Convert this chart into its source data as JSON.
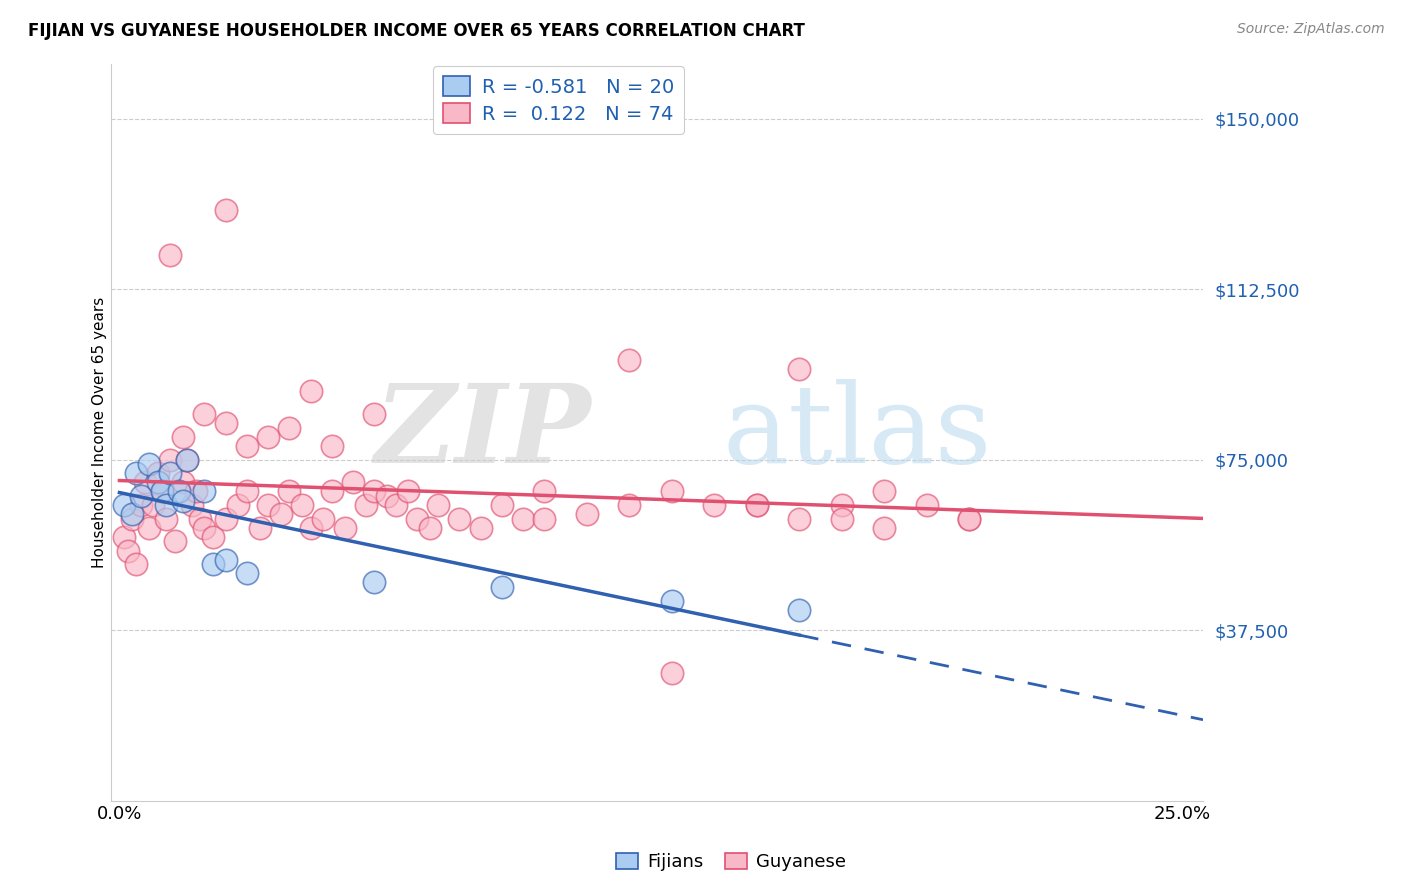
{
  "title": "FIJIAN VS GUYANESE HOUSEHOLDER INCOME OVER 65 YEARS CORRELATION CHART",
  "source": "Source: ZipAtlas.com",
  "ylabel": "Householder Income Over 65 years",
  "ytick_labels": [
    "$37,500",
    "$75,000",
    "$112,500",
    "$150,000"
  ],
  "ytick_values": [
    37500,
    75000,
    112500,
    150000
  ],
  "ylim": [
    0,
    162000
  ],
  "xlim": [
    -0.002,
    0.255
  ],
  "fijian_color": "#AACCF0",
  "guyanese_color": "#F9B8C8",
  "trend_fijian_color": "#3060B0",
  "trend_guyanese_color": "#E05070",
  "fijian_x": [
    0.001,
    0.003,
    0.004,
    0.005,
    0.007,
    0.009,
    0.01,
    0.011,
    0.012,
    0.014,
    0.015,
    0.016,
    0.02,
    0.022,
    0.025,
    0.03,
    0.06,
    0.09,
    0.13,
    0.16
  ],
  "fijian_y": [
    65000,
    63000,
    72000,
    67000,
    74000,
    70000,
    68000,
    65000,
    72000,
    68000,
    66000,
    75000,
    68000,
    52000,
    53000,
    50000,
    48000,
    47000,
    44000,
    42000
  ],
  "guyanese_x": [
    0.001,
    0.002,
    0.003,
    0.004,
    0.005,
    0.006,
    0.007,
    0.008,
    0.009,
    0.01,
    0.011,
    0.012,
    0.013,
    0.015,
    0.016,
    0.017,
    0.018,
    0.019,
    0.02,
    0.022,
    0.025,
    0.028,
    0.03,
    0.033,
    0.035,
    0.038,
    0.04,
    0.043,
    0.045,
    0.048,
    0.05,
    0.053,
    0.055,
    0.058,
    0.06,
    0.063,
    0.065,
    0.068,
    0.07,
    0.073,
    0.075,
    0.08,
    0.085,
    0.09,
    0.095,
    0.1,
    0.11,
    0.12,
    0.13,
    0.14,
    0.15,
    0.16,
    0.17,
    0.18,
    0.19,
    0.2,
    0.015,
    0.02,
    0.025,
    0.03,
    0.035,
    0.04,
    0.05,
    0.06,
    0.045,
    0.1,
    0.15,
    0.2,
    0.12,
    0.16,
    0.17,
    0.18,
    0.012,
    0.025,
    0.13
  ],
  "guyanese_y": [
    58000,
    55000,
    62000,
    52000,
    65000,
    70000,
    60000,
    65000,
    72000,
    68000,
    62000,
    75000,
    57000,
    70000,
    75000,
    65000,
    68000,
    62000,
    60000,
    58000,
    62000,
    65000,
    68000,
    60000,
    65000,
    63000,
    68000,
    65000,
    60000,
    62000,
    68000,
    60000,
    70000,
    65000,
    68000,
    67000,
    65000,
    68000,
    62000,
    60000,
    65000,
    62000,
    60000,
    65000,
    62000,
    62000,
    63000,
    65000,
    68000,
    65000,
    65000,
    62000,
    65000,
    68000,
    65000,
    62000,
    80000,
    85000,
    83000,
    78000,
    80000,
    82000,
    78000,
    85000,
    90000,
    68000,
    65000,
    62000,
    97000,
    95000,
    62000,
    60000,
    120000,
    130000,
    28000
  ],
  "fijian_trend": [
    -1350000,
    63500
  ],
  "guyanese_trend": [
    65000,
    58500
  ],
  "trend_x_start": 0.0,
  "trend_x_fijian_solid_end": 0.16,
  "trend_x_dash_end": 0.255,
  "trend_x_guyanese_end": 0.255,
  "watermark_zip": "ZIP",
  "watermark_atlas": "atlas"
}
